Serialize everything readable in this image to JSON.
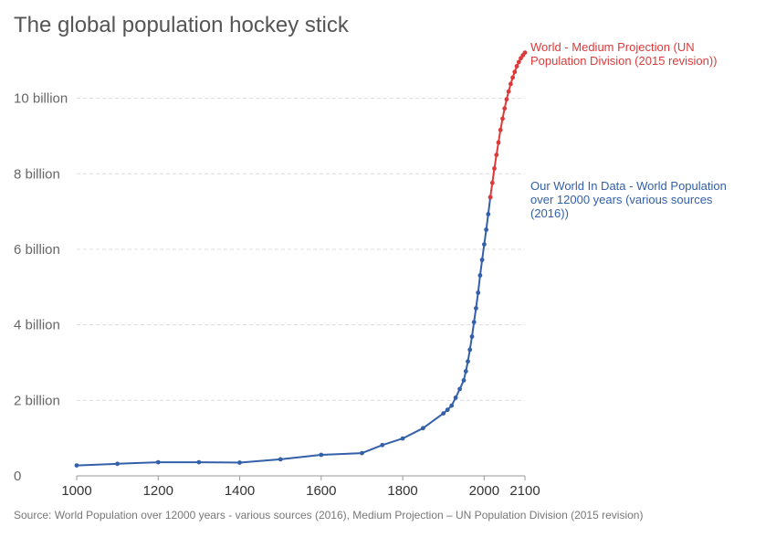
{
  "chart_data": {
    "type": "line",
    "title": "The global population hockey stick",
    "xlabel": "",
    "ylabel": "",
    "xlim": [
      1000,
      2100
    ],
    "ylim": [
      0,
      11200000000
    ],
    "x_ticks": [
      {
        "value": 1000,
        "label": "1000"
      },
      {
        "value": 1200,
        "label": "1200"
      },
      {
        "value": 1400,
        "label": "1400"
      },
      {
        "value": 1600,
        "label": "1600"
      },
      {
        "value": 1800,
        "label": "1800"
      },
      {
        "value": 2000,
        "label": "2000"
      },
      {
        "value": 2100,
        "label": "2100"
      }
    ],
    "y_ticks": [
      {
        "value": 0,
        "label": "0"
      },
      {
        "value": 2000000000,
        "label": "2 billion"
      },
      {
        "value": 4000000000,
        "label": "4 billion"
      },
      {
        "value": 6000000000,
        "label": "6 billion"
      },
      {
        "value": 8000000000,
        "label": "8 billion"
      },
      {
        "value": 10000000000,
        "label": "10 billion"
      }
    ],
    "grid": "horizontal",
    "series": [
      {
        "name": "Our World In Data - World Population over 12000 years (various sources (2016))",
        "color": "#3360a9",
        "x": [
          1000,
          1100,
          1200,
          1300,
          1400,
          1500,
          1600,
          1700,
          1750,
          1800,
          1850,
          1900,
          1910,
          1920,
          1930,
          1940,
          1950,
          1955,
          1960,
          1965,
          1970,
          1975,
          1980,
          1985,
          1990,
          1995,
          2000,
          2005,
          2010,
          2015
        ],
        "values": [
          275000000,
          320000000,
          360000000,
          360000000,
          350000000,
          438000000,
          556000000,
          603000000,
          814000000,
          989000000,
          1263000000,
          1654000000,
          1750000000,
          1860000000,
          2070000000,
          2300000000,
          2530000000,
          2770000000,
          3030000000,
          3340000000,
          3690000000,
          4070000000,
          4440000000,
          4850000000,
          5310000000,
          5720000000,
          6130000000,
          6520000000,
          6930000000,
          7380000000
        ]
      },
      {
        "name": "World - Medium Projection (UN Population Division (2015 revision))",
        "color": "#dc3a3a",
        "x": [
          2015,
          2020,
          2025,
          2030,
          2035,
          2040,
          2045,
          2050,
          2055,
          2060,
          2065,
          2070,
          2075,
          2080,
          2085,
          2090,
          2095,
          2100
        ],
        "values": [
          7380000000,
          7760000000,
          8140000000,
          8500000000,
          8830000000,
          9160000000,
          9460000000,
          9730000000,
          9970000000,
          10180000000,
          10380000000,
          10550000000,
          10700000000,
          10850000000,
          10960000000,
          11060000000,
          11140000000,
          11210000000
        ]
      }
    ],
    "labels": {
      "projection": [
        "World - Medium Projection (UN",
        "Population Division (2015 revision))"
      ],
      "historical": [
        "Our World In Data - World Population",
        "over 12000 years (various sources",
        "(2016))"
      ]
    },
    "source": "Source: World Population over 12000 years - various sources (2016), Medium Projection – UN Population Division (2015 revision)"
  }
}
